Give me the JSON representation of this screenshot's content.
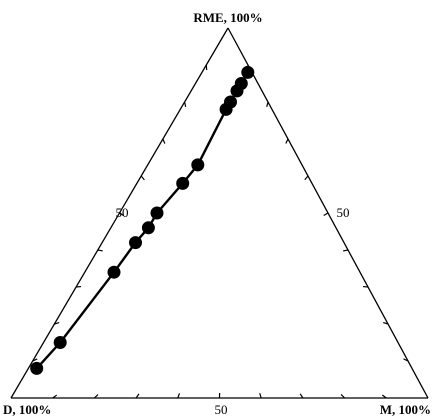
{
  "chart_data": {
    "type": "scatter",
    "chart_kind": "ternary",
    "vertices": {
      "top": "RME, 100%",
      "bottom_left": "D, 100%",
      "bottom_right": "M, 100%"
    },
    "tick_labels": {
      "left_edge": "50",
      "right_edge": "50",
      "bottom_edge": "50"
    },
    "series": [
      {
        "components_order": [
          "RME",
          "D",
          "M"
        ],
        "points": [
          [
            8,
            90,
            2
          ],
          [
            15,
            81,
            4
          ],
          [
            34,
            59,
            7
          ],
          [
            42,
            50,
            8
          ],
          [
            46,
            45,
            9
          ],
          [
            50,
            41,
            9
          ],
          [
            58,
            31,
            11
          ],
          [
            63,
            25,
            12
          ],
          [
            78,
            11,
            11
          ],
          [
            80,
            9,
            11
          ],
          [
            83,
            6,
            11
          ],
          [
            85,
            4,
            11
          ],
          [
            88,
            1,
            11
          ]
        ],
        "marker": "filled-circle",
        "line": "solid",
        "color": "#000000"
      }
    ],
    "edge_ticks_per_side": 10,
    "grid": false,
    "legend": "none"
  }
}
